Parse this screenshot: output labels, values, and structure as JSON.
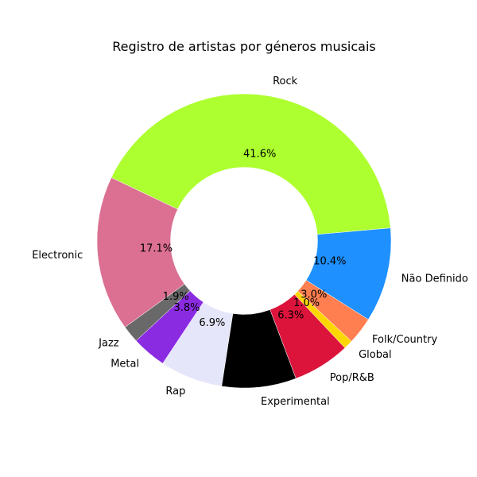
{
  "chart_data": {
    "type": "pie",
    "donut": true,
    "title": "Registro de artistas por géneros musicais",
    "categories": [
      "Rock",
      "Não Definido",
      "Folk/Country",
      "Global",
      "Pop/R&B",
      "Experimental",
      "Rap",
      "Metal",
      "Jazz",
      "Electronic"
    ],
    "values": [
      41.6,
      10.4,
      3.0,
      1.0,
      6.3,
      8.2,
      6.9,
      3.8,
      1.9,
      17.1
    ],
    "value_labels": [
      "41.6%",
      "10.4%",
      "3.0%",
      "1.0%",
      "6.3%",
      "",
      "6.9%",
      "3.8%",
      "1.9%",
      "17.1%"
    ],
    "colors": [
      "#adff2f",
      "#1e90ff",
      "#ff7f50",
      "#ffd700",
      "#dc143c",
      "#000000",
      "#e6e6fa",
      "#8a2be2",
      "#696969",
      "#db7093"
    ],
    "start_angle_deg": 154.5,
    "direction": "clockwise",
    "legend": "none"
  }
}
